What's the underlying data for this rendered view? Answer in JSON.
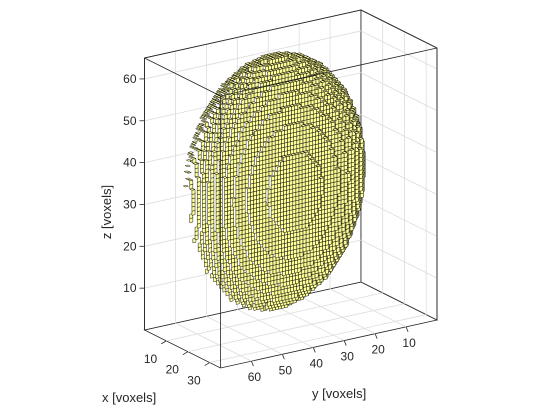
{
  "figure": {
    "background": "#ffffff"
  },
  "chart_data": {
    "type": "3d-voxel",
    "title": "",
    "xlabel": "x [voxels]",
    "ylabel": "y [voxels]",
    "zlabel": "z [voxels]",
    "xlim": [
      0,
      35
    ],
    "ylim": [
      0,
      70
    ],
    "zlim": [
      0,
      65
    ],
    "x_ticks": [
      10,
      20,
      30
    ],
    "y_ticks": [
      10,
      20,
      30,
      40,
      50,
      60
    ],
    "z_ticks": [
      10,
      20,
      30,
      40,
      50,
      60
    ],
    "grid": true,
    "box": "full",
    "voxel_face_color": "#ffff99",
    "voxel_edge_color": "#000000",
    "object": {
      "shape": "voxelized disc (flattened ellipsoid)",
      "center": {
        "x": 17,
        "y": 40,
        "z": 35
      },
      "semi_axes": {
        "x": 10,
        "y": 28,
        "z": 30
      }
    }
  }
}
